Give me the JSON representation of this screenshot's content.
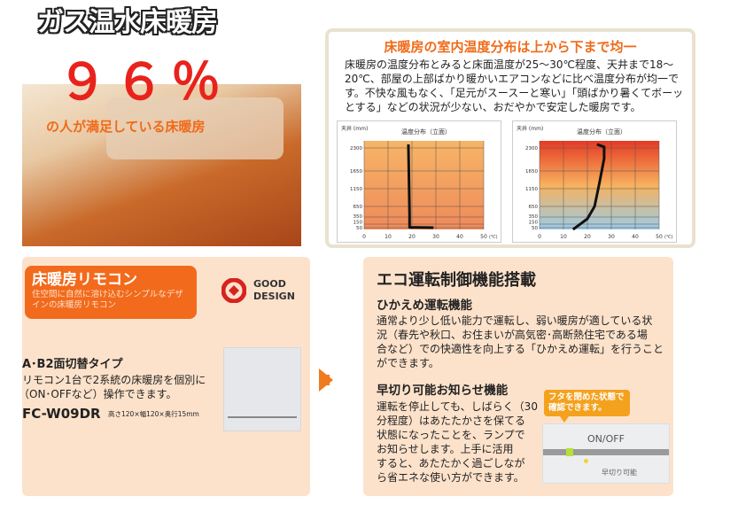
{
  "header": {
    "title": "ガス温水床暖房"
  },
  "hero": {
    "percent": "９６％",
    "subtitle": "の人が満足している床暖房"
  },
  "temperature": {
    "heading": "床暖房の室内温度分布は上から下まで均一",
    "body": "床暖房の温度分布とみると床面温度が25～30℃程度、天井まで18～20℃、部屋の上部ばかり暖かいエアコンなどに比べ温度分布が均一です。不快な風もなく、「足元がスースーと寒い」「頭ばかり暑くてボーッとする」などの状況が少ない、おだやかで安定した暖房です。"
  },
  "chart_data": [
    {
      "type": "line",
      "title": "温度分布（立面）",
      "ylabel": "天井 (mm)",
      "xlabel": "(℃)",
      "yticks": [
        50,
        150,
        350,
        650,
        1150,
        1650,
        2300
      ],
      "xticks": [
        0,
        10,
        20,
        30,
        40,
        50
      ],
      "xlim": [
        0,
        50
      ],
      "ylim": [
        0,
        2500
      ],
      "colors": [
        "#f7b566",
        "#ef8a5a"
      ],
      "series": [
        {
          "x": [
            29,
            19,
            19,
            18.5
          ],
          "y": [
            50,
            60,
            400,
            2400
          ]
        }
      ]
    },
    {
      "type": "line",
      "title": "温度分布（立面）",
      "ylabel": "天井 (mm)",
      "xlabel": "(℃)",
      "yticks": [
        50,
        150,
        350,
        650,
        1150,
        1650,
        2300
      ],
      "xticks": [
        0,
        10,
        20,
        30,
        40,
        50
      ],
      "xlim": [
        0,
        50
      ],
      "ylim": [
        0,
        2500
      ],
      "colors": [
        "#e53a23",
        "#f7b15e",
        "#9ccbe6"
      ],
      "series": [
        {
          "x": [
            14,
            20,
            23,
            25,
            27,
            27,
            24
          ],
          "y": [
            0,
            300,
            650,
            1300,
            2000,
            2330,
            2400
          ]
        }
      ]
    }
  ],
  "remote": {
    "heading": "床暖房リモコン",
    "sub": "住空間に自然に溶け込むシンプルなデザインの床暖房リモコン",
    "gd1": "GOOD",
    "gd2": "DESIGN",
    "type_title": "A･B2面切替タイプ",
    "type_body1": "リモコン1台で2系統の床暖房を個別に",
    "type_body2": "（ON･OFFなど）操作できます。",
    "model": "FC-W09DR",
    "dims": "高さ120×幅120×奥行15mm"
  },
  "eco": {
    "heading": "エコ運転制御機能搭載",
    "f1_title": "ひかえめ運転機能",
    "f1_lines": [
      "通常より少し低い能力で運転し、弱い暖房が適している状",
      "況（春先や秋口、お住まいが高気密･高断熱住宅である場",
      "合など）での快適性を向上する「ひかえめ運転」を行うこと",
      "ができます。"
    ],
    "f2_title": "早切り可能お知らせ機能",
    "f2_lines": [
      "運転を停止しても、しばらく（30",
      "分程度）はあたたかさを保てる",
      "状態になったことを、ランプで",
      "お知らせします。上手に活用",
      "すると、あたたかく過ごしなが",
      "ら省エネな使い方ができます。"
    ],
    "callout": "フタを閉めた状態で確認できます。",
    "onoff": "ON/OFF",
    "lamp": "早切り可能"
  }
}
